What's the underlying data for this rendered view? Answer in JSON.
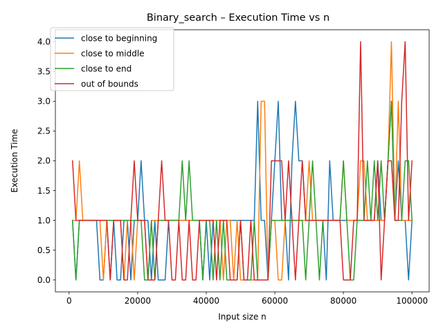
{
  "chart_data": {
    "type": "line",
    "title": "Binary_search – Execution Time vs n",
    "xlabel": "Input size n",
    "ylabel": "Execution Time",
    "xlim": [
      -4000,
      105000
    ],
    "ylim": [
      -0.2,
      4.2
    ],
    "xticks": [
      0,
      20000,
      40000,
      60000,
      80000,
      100000
    ],
    "yticks": [
      0.0,
      0.5,
      1.0,
      1.5,
      2.0,
      2.5,
      3.0,
      3.5,
      4.0
    ],
    "xtick_labels": [
      "0",
      "20000",
      "40000",
      "60000",
      "80000",
      "100000"
    ],
    "ytick_labels": [
      "0.0",
      "0.5",
      "1.0",
      "1.5",
      "2.0",
      "2.5",
      "3.0",
      "3.5",
      "4.0"
    ],
    "grid": false,
    "legend_position": "upper-left",
    "x": [
      1000,
      2000,
      3000,
      4000,
      5000,
      6000,
      7000,
      8000,
      9000,
      10000,
      11000,
      12000,
      13000,
      14000,
      15000,
      16000,
      17000,
      18000,
      19000,
      20000,
      21000,
      22000,
      23000,
      24000,
      25000,
      26000,
      27000,
      28000,
      29000,
      30000,
      31000,
      32000,
      33000,
      34000,
      35000,
      36000,
      37000,
      38000,
      39000,
      40000,
      41000,
      42000,
      43000,
      44000,
      45000,
      46000,
      47000,
      48000,
      49000,
      50000,
      51000,
      52000,
      53000,
      54000,
      55000,
      56000,
      57000,
      58000,
      59000,
      60000,
      61000,
      62000,
      63000,
      64000,
      65000,
      66000,
      67000,
      68000,
      69000,
      70000,
      71000,
      72000,
      73000,
      74000,
      75000,
      76000,
      77000,
      78000,
      79000,
      80000,
      81000,
      82000,
      83000,
      84000,
      85000,
      86000,
      87000,
      88000,
      89000,
      90000,
      91000,
      92000,
      93000,
      94000,
      95000,
      96000,
      97000,
      98000,
      99000,
      100000
    ],
    "series": [
      {
        "name": "close to beginning",
        "color": "#1f77b4",
        "values": [
          1,
          0,
          1,
          1,
          1,
          1,
          1,
          1,
          0,
          0,
          1,
          0,
          1,
          0,
          0,
          1,
          1,
          0,
          1,
          1,
          2,
          1,
          1,
          0,
          1,
          0,
          0,
          0,
          1,
          1,
          1,
          1,
          1,
          1,
          1,
          1,
          1,
          1,
          0,
          1,
          0,
          1,
          1,
          1,
          1,
          1,
          1,
          1,
          1,
          1,
          1,
          1,
          1,
          1,
          3,
          1,
          1,
          0,
          1,
          2,
          3,
          1,
          1,
          0,
          2,
          3,
          2,
          2,
          1,
          1,
          1,
          1,
          1,
          1,
          0,
          2,
          1,
          1,
          1,
          1,
          1,
          1,
          1,
          1,
          1,
          1,
          1,
          1,
          1,
          2,
          1,
          1,
          2,
          3,
          1,
          2,
          1,
          1,
          0,
          1
        ]
      },
      {
        "name": "close to middle",
        "color": "#ff7f0e",
        "values": [
          1,
          1,
          2,
          1,
          1,
          1,
          1,
          1,
          1,
          0,
          1,
          1,
          1,
          1,
          1,
          0,
          1,
          1,
          0,
          1,
          1,
          1,
          0,
          1,
          1,
          1,
          1,
          1,
          1,
          1,
          1,
          1,
          1,
          1,
          1,
          1,
          1,
          1,
          1,
          1,
          1,
          1,
          1,
          1,
          0,
          1,
          1,
          0,
          1,
          0,
          0,
          0,
          0,
          0,
          0,
          3,
          3,
          0,
          1,
          1,
          0,
          0,
          1,
          1,
          1,
          1,
          1,
          1,
          1,
          2,
          1,
          1,
          1,
          1,
          1,
          1,
          1,
          1,
          1,
          2,
          1,
          1,
          1,
          1,
          2,
          2,
          1,
          1,
          1,
          1,
          1,
          1,
          2,
          4,
          1,
          3,
          1,
          1,
          1,
          1
        ]
      },
      {
        "name": "close to end",
        "color": "#2ca02c",
        "values": [
          1,
          0,
          1,
          1,
          1,
          1,
          1,
          1,
          1,
          1,
          1,
          1,
          1,
          1,
          1,
          1,
          1,
          1,
          1,
          1,
          1,
          0,
          0,
          1,
          0,
          1,
          1,
          1,
          1,
          1,
          1,
          1,
          2,
          1,
          2,
          1,
          1,
          1,
          0,
          1,
          1,
          0,
          1,
          0,
          1,
          0,
          0,
          0,
          0,
          1,
          0,
          0,
          0,
          1,
          0,
          0,
          0,
          0,
          1,
          1,
          1,
          1,
          1,
          1,
          1,
          1,
          1,
          1,
          0,
          1,
          2,
          1,
          0,
          1,
          1,
          1,
          1,
          1,
          1,
          2,
          1,
          0,
          0,
          1,
          1,
          1,
          2,
          1,
          2,
          1,
          2,
          1,
          2,
          3,
          1,
          1,
          1,
          2,
          2,
          1
        ]
      },
      {
        "name": "out of bounds",
        "color": "#d62728",
        "values": [
          2,
          1,
          1,
          1,
          1,
          1,
          1,
          1,
          1,
          1,
          1,
          0,
          1,
          1,
          1,
          0,
          0,
          1,
          2,
          1,
          1,
          1,
          0,
          0,
          0,
          1,
          2,
          1,
          1,
          0,
          0,
          1,
          0,
          0,
          1,
          0,
          0,
          1,
          1,
          1,
          1,
          1,
          0,
          1,
          1,
          1,
          0,
          0,
          0,
          1,
          0,
          0,
          1,
          0,
          0,
          0,
          0,
          0,
          2,
          2,
          2,
          2,
          1,
          2,
          1,
          0,
          1,
          2,
          1,
          1,
          1,
          1,
          1,
          1,
          1,
          1,
          1,
          1,
          1,
          0,
          0,
          0,
          1,
          1,
          4,
          1,
          1,
          1,
          1,
          2,
          0,
          1,
          2,
          2,
          1,
          1,
          3,
          4,
          1,
          2
        ]
      }
    ]
  }
}
